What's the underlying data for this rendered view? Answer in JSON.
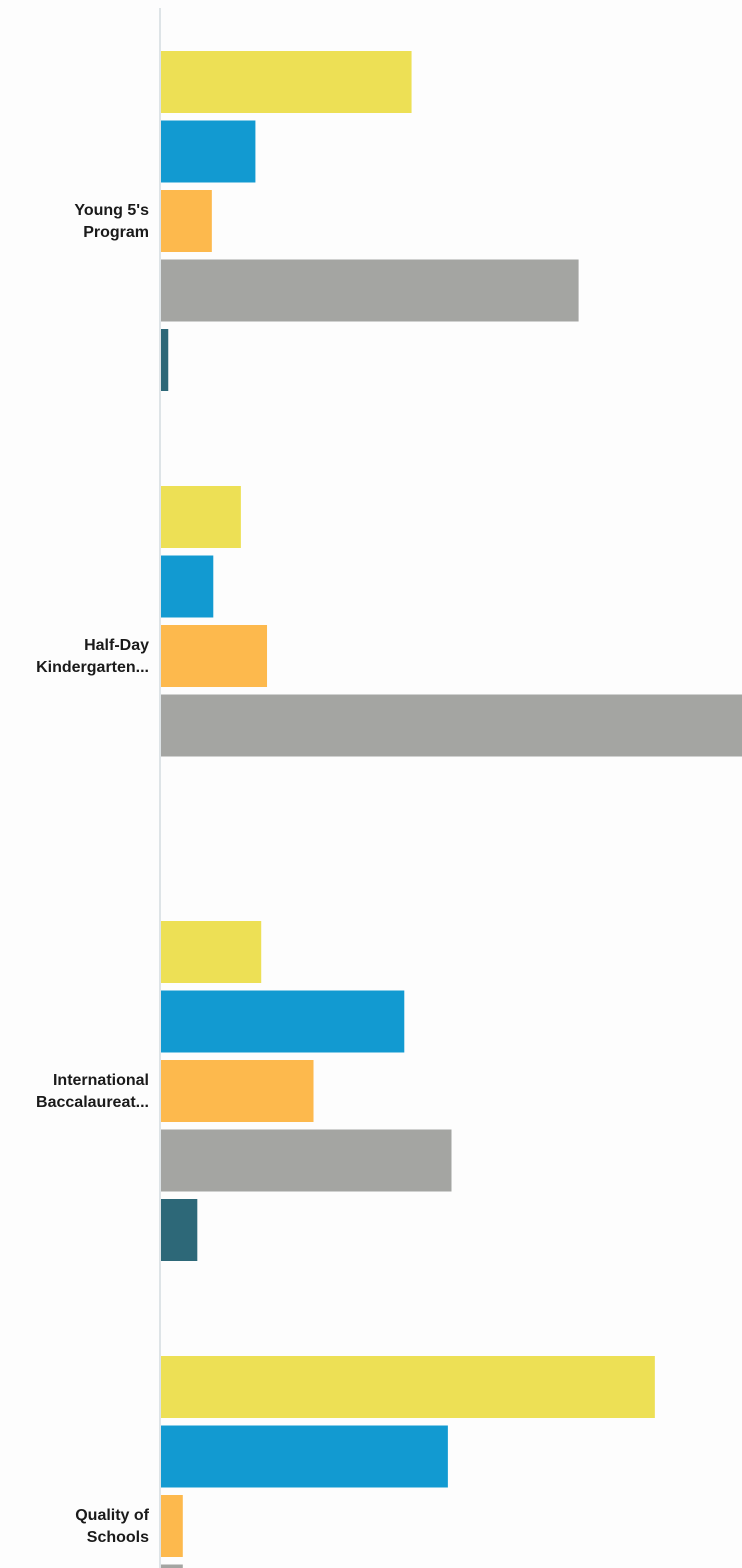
{
  "chart_data": {
    "type": "bar",
    "orientation": "horizontal",
    "categories": [
      "Young 5's Program",
      "Half-Day Kindergarten...",
      "International Baccalaureat...",
      "Quality of Schools"
    ],
    "category_label_lines": [
      [
        "Young 5's",
        "Program"
      ],
      [
        "Half-Day",
        "Kindergarten..."
      ],
      [
        "International",
        "Baccalaureat..."
      ],
      [
        "Quality of",
        "Schools"
      ]
    ],
    "series": [
      {
        "values": [
          34.5,
          11,
          13.8,
          68
        ],
        "color": "#ede055"
      },
      {
        "values": [
          13,
          7.2,
          33.5,
          39.5
        ],
        "color": "#129ad1"
      },
      {
        "values": [
          7,
          14.6,
          21,
          3
        ],
        "color": "#fdb94d"
      },
      {
        "values": [
          57.5,
          80,
          40,
          3
        ],
        "color": "#a4a5a2"
      },
      {
        "values": [
          1,
          0,
          5,
          0
        ],
        "color": "#2d6878"
      }
    ],
    "xlim": [
      0,
      80
    ],
    "grid": false,
    "legend": "none",
    "axis_color": "#d4dbe0"
  }
}
